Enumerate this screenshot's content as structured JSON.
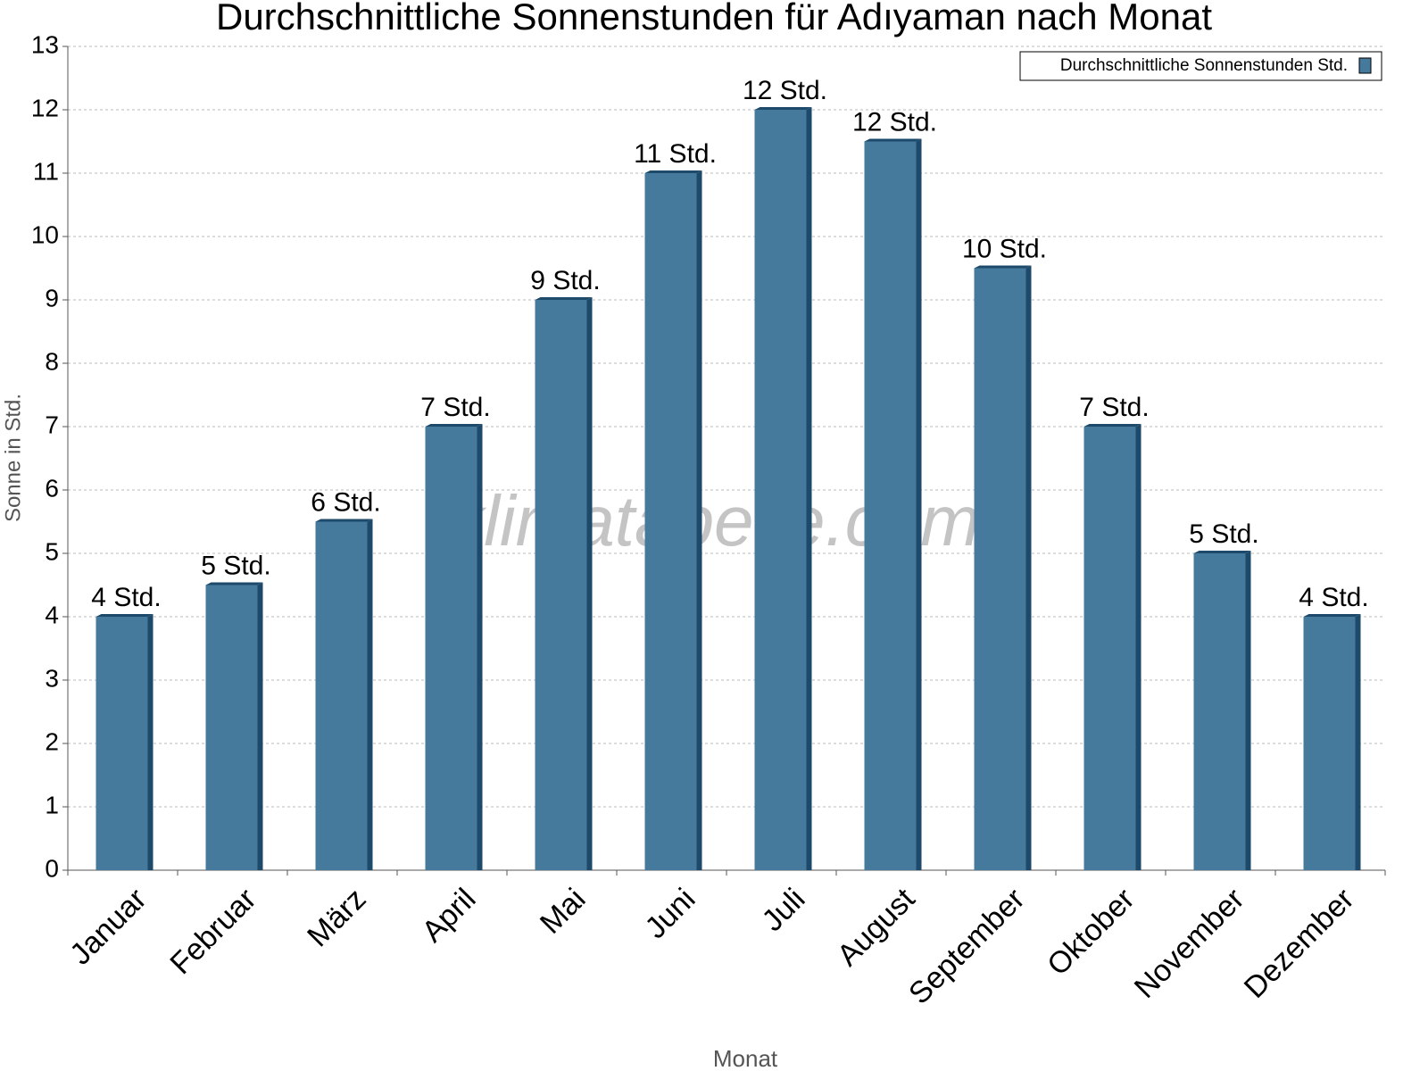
{
  "chart_data": {
    "type": "bar",
    "title": "Durchschnittliche Sonnenstunden für Adıyaman nach Monat",
    "watermark": "klimatabelle.com",
    "x_label": "Monat",
    "y_label": "Sonne in Std.",
    "categories": [
      "Januar",
      "Februar",
      "März",
      "April",
      "Mai",
      "Juni",
      "Juli",
      "August",
      "September",
      "Oktober",
      "November",
      "Dezember"
    ],
    "series": [
      {
        "name": "Durchschnittliche Sonnenstunden Std.",
        "color": "#457a9c",
        "values": [
          4,
          4.5,
          5.5,
          7,
          9,
          11,
          12,
          11.5,
          9.5,
          7,
          5,
          4
        ],
        "value_labels": [
          "4 Std.",
          "5 Std.",
          "6 Std.",
          "7 Std.",
          "9 Std.",
          "11 Std.",
          "12 Std.",
          "12 Std.",
          "10 Std.",
          "7 Std.",
          "5 Std.",
          "4 Std."
        ]
      }
    ],
    "ylim": [
      0,
      13
    ],
    "yticks": [
      0,
      1,
      2,
      3,
      4,
      5,
      6,
      7,
      8,
      9,
      10,
      11,
      12,
      13
    ],
    "grid": true,
    "legend": "top-right"
  }
}
